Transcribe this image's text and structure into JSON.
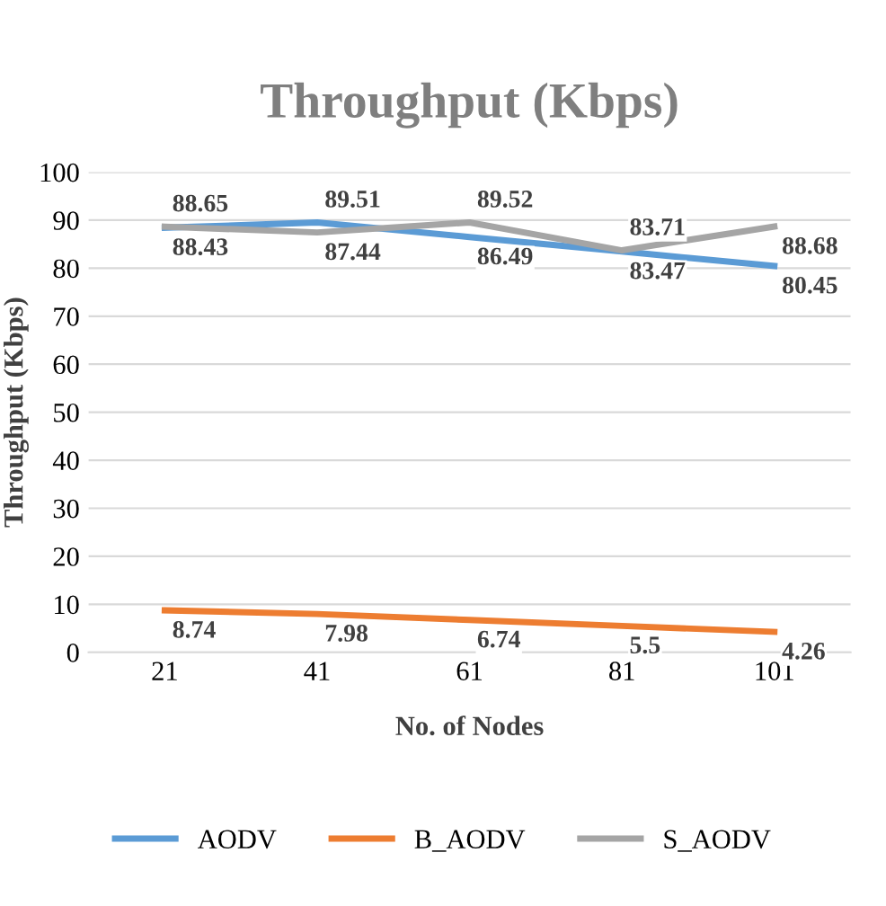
{
  "chart_data": {
    "type": "line",
    "title": "Throughput (Kbps)",
    "xlabel": "No. of Nodes",
    "ylabel": "Throughput (Kbps)",
    "categories": [
      "21",
      "41",
      "61",
      "81",
      "101"
    ],
    "series": [
      {
        "name": "AODV",
        "color": "#5b9bd5",
        "values": [
          88.43,
          89.51,
          86.49,
          83.47,
          80.45
        ]
      },
      {
        "name": "B_AODV",
        "color": "#ed7d31",
        "values": [
          8.74,
          7.98,
          6.74,
          5.5,
          4.26
        ]
      },
      {
        "name": "S_AODV",
        "color": "#a5a5a5",
        "values": [
          88.65,
          87.44,
          89.52,
          83.71,
          88.68
        ]
      }
    ],
    "ylim": [
      0,
      100
    ],
    "yticks": [
      0,
      10,
      20,
      30,
      40,
      50,
      60,
      70,
      80,
      90,
      100
    ],
    "grid": "y",
    "legend": "bottom",
    "marker": "none",
    "line_style": "solid",
    "data_labels": true
  }
}
